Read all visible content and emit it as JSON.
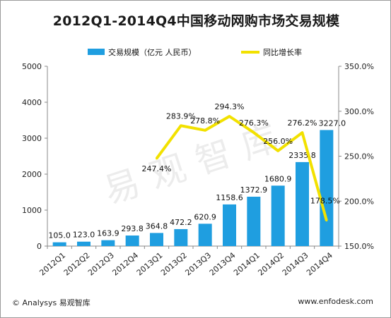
{
  "chart_data": {
    "type": "bar+line",
    "title": "2012Q1-2014Q4中国移动网购市场交易规模",
    "categories": [
      "2012Q1",
      "2012Q2",
      "2012Q3",
      "2012Q4",
      "2013Q1",
      "2013Q2",
      "2013Q3",
      "2013Q4",
      "2014Q1",
      "2014Q2",
      "2014Q3",
      "2014Q4"
    ],
    "series": [
      {
        "name": "交易规模（亿元 人民币）",
        "type": "bar",
        "axis": "left",
        "color": "#1f9ee0",
        "values": [
          105.0,
          123.0,
          163.9,
          293.8,
          364.8,
          472.2,
          620.9,
          1158.6,
          1372.9,
          1680.9,
          2335.8,
          3227.0
        ],
        "labels": [
          "105.0",
          "123.0",
          "163.9",
          "293.8",
          "364.8",
          "472.2",
          "620.9",
          "1158.6",
          "1372.9",
          "1680.9",
          "2335.8",
          "3227.0"
        ]
      },
      {
        "name": "同比增长率",
        "type": "line",
        "axis": "right",
        "color": "#f2e100",
        "values": [
          null,
          null,
          null,
          null,
          247.4,
          283.9,
          278.8,
          294.3,
          276.3,
          256.0,
          276.2,
          178.5
        ],
        "labels": [
          "",
          "",
          "",
          "",
          "247.4%",
          "283.9%",
          "278.8%",
          "294.3%",
          "276.3%",
          "256.0%",
          "276.2%",
          "178.5%"
        ]
      }
    ],
    "y_left": {
      "ticks": [
        0,
        1000,
        2000,
        3000,
        4000,
        5000
      ],
      "ylim": [
        0,
        5000
      ]
    },
    "y_right": {
      "ticks": [
        150,
        200,
        250,
        300,
        350
      ],
      "tick_labels": [
        "150.0%",
        "200.0%",
        "250.0%",
        "300.0%",
        "350.0%"
      ],
      "ylim": [
        150,
        350
      ]
    },
    "legend": "top-center",
    "grid": false
  },
  "watermark": "易观智库",
  "footer": {
    "source": "© Analysys 易观智库",
    "url": "www.enfodesk.com"
  }
}
